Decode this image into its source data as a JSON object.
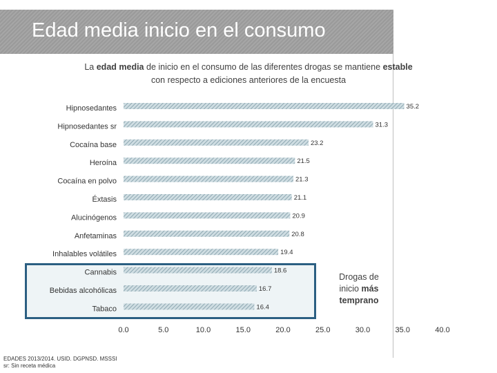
{
  "slide": {
    "title": "Edad media inicio en el consumo",
    "subtitle": {
      "line1_a": "La ",
      "line1_b": "edad media",
      "line1_c": " de inicio en el consumo de las diferentes drogas se mantiene ",
      "line1_d": "estable",
      "line2": "con respecto a ediciones anteriores de la encuesta"
    },
    "annotation": {
      "line1": "Drogas de",
      "line2a": "inicio ",
      "line2b": "más",
      "line3": "temprano"
    },
    "source": {
      "line1": "EDADES 2013/2014. USID. DGPNSD. MSSSI",
      "line2": "sr: Sin receta médica"
    }
  },
  "colors": {
    "bar_fill": "#cfdde2",
    "bar_stripe": "#8ea8b2",
    "highlight_border": "#2b5f82",
    "highlight_bg": "#eef4f6",
    "title_bg": "#a0a0a0"
  },
  "chart_data": {
    "type": "bar",
    "orientation": "horizontal",
    "title": "",
    "xlabel": "",
    "ylabel": "",
    "xlim": [
      0,
      40
    ],
    "x_ticks": [
      "0.0",
      "5.0",
      "10.0",
      "15.0",
      "20.0",
      "25.0",
      "30.0",
      "35.0",
      "40.0"
    ],
    "categories": [
      "Hipnosedantes",
      "Hipnosedantes sr",
      "Cocaína base",
      "Heroína",
      "Cocaína en polvo",
      "Éxtasis",
      "Alucinógenos",
      "Anfetaminas",
      "Inhalables volátiles",
      "Cannabis",
      "Bebidas alcohólicas",
      "Tabaco"
    ],
    "values": [
      35.2,
      31.3,
      23.2,
      21.5,
      21.3,
      21.1,
      20.9,
      20.8,
      19.4,
      18.6,
      16.7,
      16.4
    ],
    "value_labels": [
      "35.2",
      "31.3",
      "23.2",
      "21.5",
      "21.3",
      "21.1",
      "20.9",
      "20.8",
      "19.4",
      "18.6",
      "16.7",
      "16.4"
    ],
    "highlighted": [
      "Cannabis",
      "Bebidas alcohólicas",
      "Tabaco"
    ],
    "grid": false,
    "legend": "none"
  }
}
